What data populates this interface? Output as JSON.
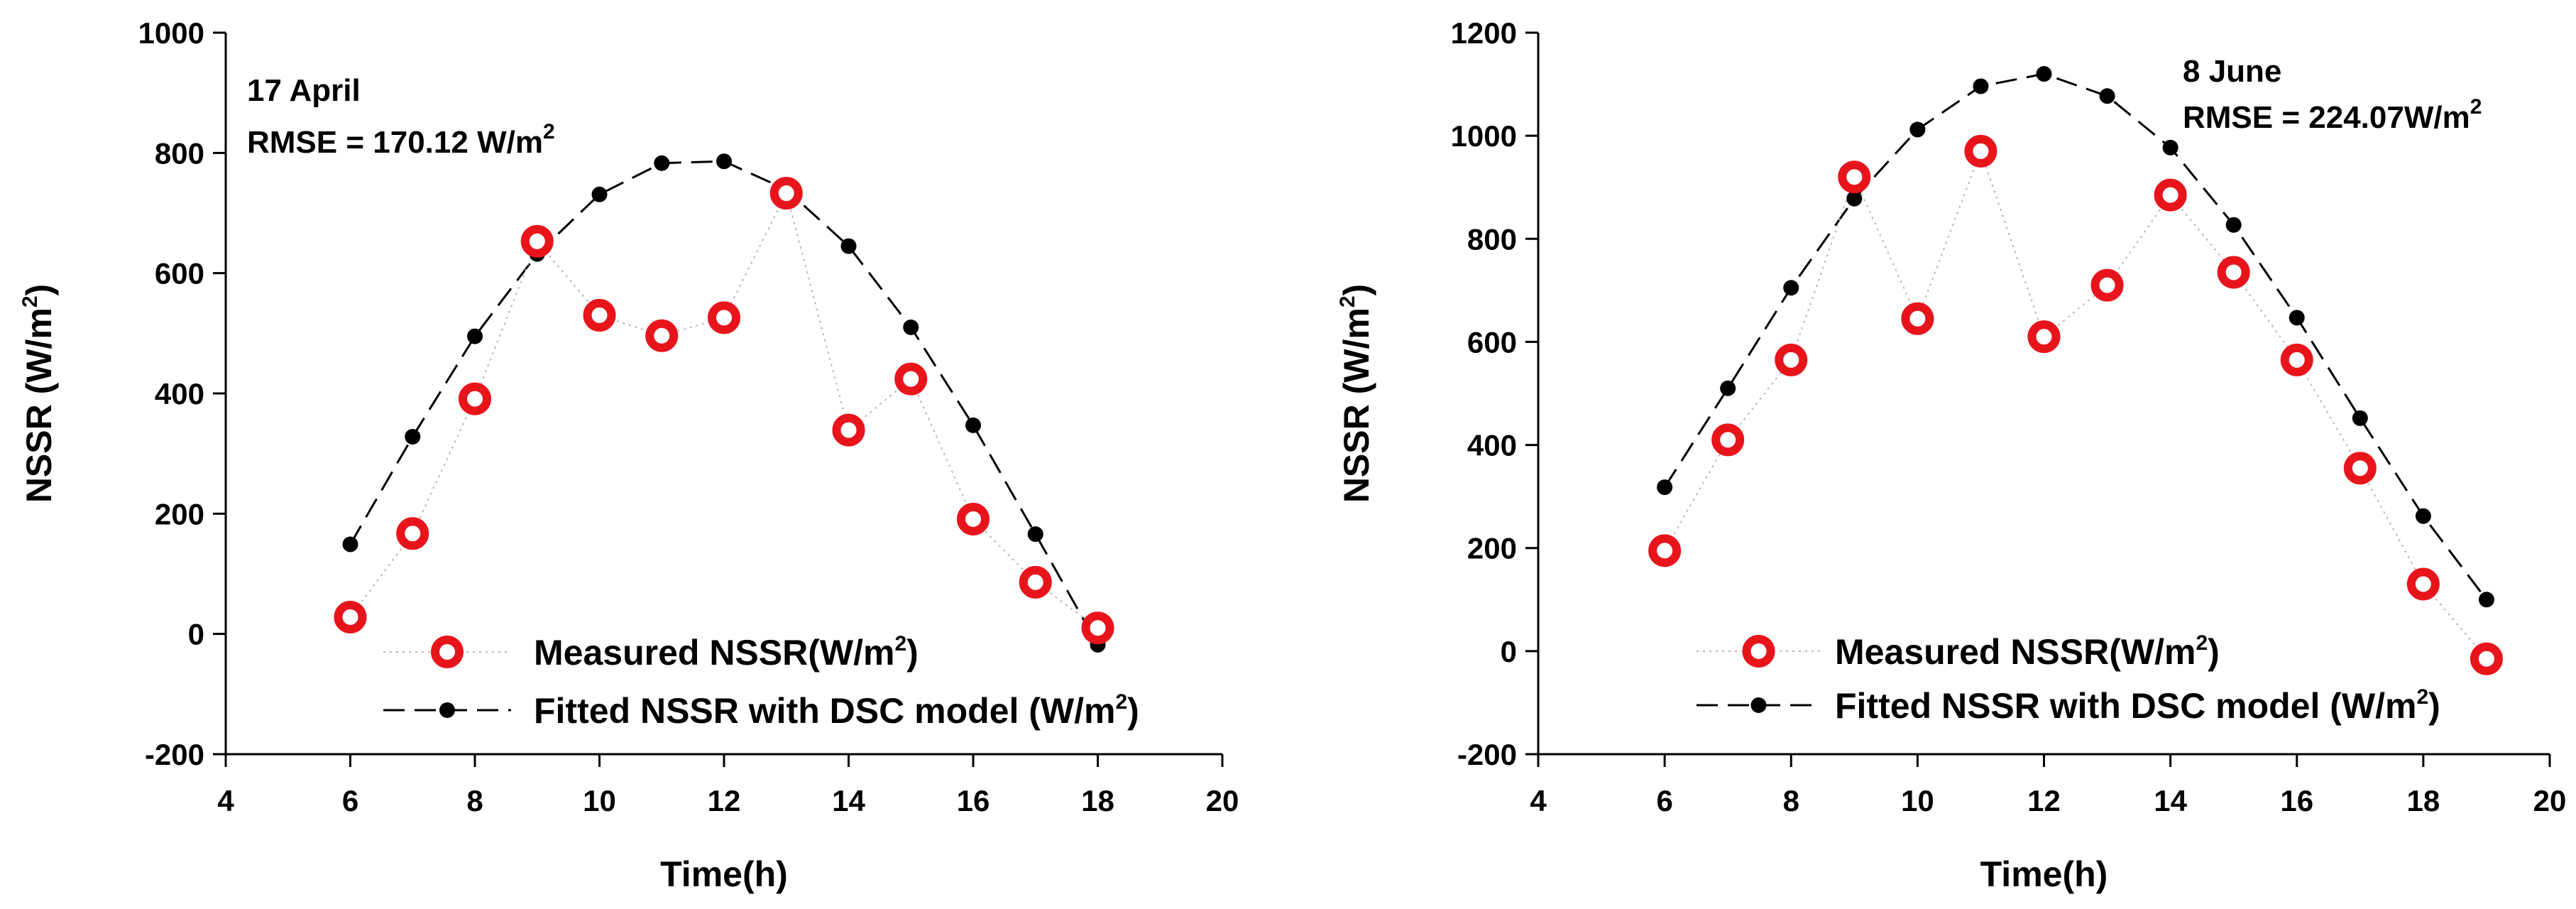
{
  "chart_data": [
    {
      "type": "line",
      "title": "",
      "xlabel": "Time(h)",
      "ylabel": "NSSR (W/m2)",
      "ylabel_base": "NSSR (W/m",
      "ylabel_sup": "2",
      "ylabel_tail": ")",
      "xlim": [
        4,
        20
      ],
      "ylim": [
        -200,
        1000
      ],
      "xticks": [
        4,
        6,
        8,
        10,
        12,
        14,
        16,
        18,
        20
      ],
      "yticks": [
        -200,
        0,
        200,
        400,
        600,
        800,
        1000
      ],
      "grid": false,
      "legend_position": "bottom-right",
      "annotations": {
        "date": "17 April",
        "rmse_base": "RMSE = 170.12 W/m",
        "rmse_sup": "2"
      },
      "series": [
        {
          "name": "Measured NSSR(W/m2)",
          "legend_base": "Measured NSSR(W/m",
          "legend_sup": "2",
          "legend_tail": ")",
          "color": "#e8141b",
          "marker": "ring",
          "x": [
            6,
            7,
            8,
            9,
            10,
            11,
            12,
            13,
            14,
            15,
            16,
            17,
            18
          ],
          "values": [
            28,
            167,
            391,
            653,
            530,
            496,
            526,
            733,
            339,
            424,
            191,
            86,
            10
          ]
        },
        {
          "name": "Fitted NSSR with DSC model (W/m2)",
          "legend_base": "Fitted NSSR with DSC model (W/m",
          "legend_sup": "2",
          "legend_tail": ")",
          "color": "#000000",
          "marker": "dot",
          "x": [
            6,
            7,
            8,
            9,
            10,
            11,
            12,
            13,
            14,
            15,
            16,
            17,
            18
          ],
          "values": [
            149,
            328,
            495,
            632,
            731,
            783,
            786,
            739,
            645,
            510,
            347,
            166,
            -18
          ]
        }
      ]
    },
    {
      "type": "line",
      "title": "",
      "xlabel": "Time(h)",
      "ylabel": "NSSR (W/m2)",
      "ylabel_base": "NSSR (W/m",
      "ylabel_sup": "2",
      "ylabel_tail": ")",
      "xlim": [
        4,
        20
      ],
      "ylim": [
        -200,
        1200
      ],
      "xticks": [
        4,
        6,
        8,
        10,
        12,
        14,
        16,
        18,
        20
      ],
      "yticks": [
        -200,
        0,
        200,
        400,
        600,
        800,
        1000,
        1200
      ],
      "grid": false,
      "legend_position": "bottom-right",
      "annotations": {
        "date": "8 June",
        "rmse_base": "RMSE = 224.07W/m",
        "rmse_sup": "2"
      },
      "series": [
        {
          "name": "Measured NSSR(W/m2)",
          "legend_base": "Measured NSSR(W/m",
          "legend_sup": "2",
          "legend_tail": ")",
          "color": "#e8141b",
          "marker": "ring",
          "x": [
            6,
            7,
            8,
            9,
            10,
            11,
            12,
            13,
            14,
            15,
            16,
            17,
            18,
            19
          ],
          "values": [
            195,
            410,
            565,
            920,
            645,
            970,
            610,
            710,
            885,
            735,
            565,
            355,
            130,
            -15
          ]
        },
        {
          "name": "Fitted NSSR with DSC model (W/m2)",
          "legend_base": "Fitted NSSR with DSC model (W/m",
          "legend_sup": "2",
          "legend_tail": ")",
          "color": "#000000",
          "marker": "dot",
          "x": [
            6,
            7,
            8,
            9,
            10,
            11,
            12,
            13,
            14,
            15,
            16,
            17,
            18,
            19
          ],
          "values": [
            318,
            510,
            705,
            878,
            1012,
            1096,
            1120,
            1077,
            977,
            827,
            647,
            452,
            262,
            100
          ]
        }
      ]
    }
  ]
}
